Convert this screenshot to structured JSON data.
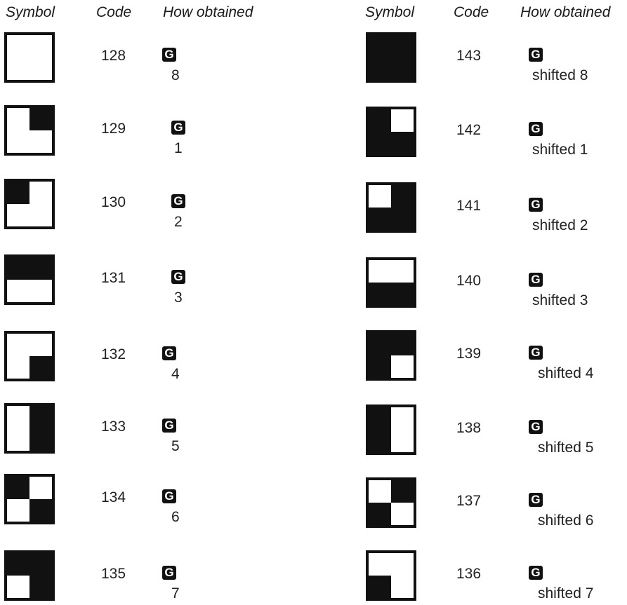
{
  "headers": {
    "left": {
      "symbol": "Symbol",
      "code": "Code",
      "how": "How obtained"
    },
    "right": {
      "symbol": "Symbol",
      "code": "Code",
      "how": "How obtained"
    }
  },
  "key_label": "G",
  "left_rows": [
    {
      "code": "128",
      "how": "8",
      "quadrants": [
        false,
        false,
        false,
        false
      ]
    },
    {
      "code": "129",
      "how": "1",
      "quadrants": [
        false,
        true,
        false,
        false
      ]
    },
    {
      "code": "130",
      "how": "2",
      "quadrants": [
        true,
        false,
        false,
        false
      ]
    },
    {
      "code": "131",
      "how": "3",
      "quadrants": [
        true,
        true,
        false,
        false
      ]
    },
    {
      "code": "132",
      "how": "4",
      "quadrants": [
        false,
        false,
        false,
        true
      ]
    },
    {
      "code": "133",
      "how": "5",
      "quadrants": [
        false,
        true,
        false,
        true
      ]
    },
    {
      "code": "134",
      "how": "6",
      "quadrants": [
        true,
        false,
        false,
        true
      ]
    },
    {
      "code": "135",
      "how": "7",
      "quadrants": [
        true,
        true,
        false,
        true
      ]
    }
  ],
  "right_rows": [
    {
      "code": "143",
      "how": "shifted 8",
      "quadrants": [
        true,
        true,
        true,
        true
      ]
    },
    {
      "code": "142",
      "how": "shifted 1",
      "quadrants": [
        true,
        false,
        true,
        true
      ]
    },
    {
      "code": "141",
      "how": "shifted 2",
      "quadrants": [
        false,
        true,
        true,
        true
      ]
    },
    {
      "code": "140",
      "how": "shifted 3",
      "quadrants": [
        false,
        false,
        true,
        true
      ]
    },
    {
      "code": "139",
      "how": "shifted 4",
      "quadrants": [
        true,
        true,
        true,
        false
      ]
    },
    {
      "code": "138",
      "how": "shifted 5",
      "quadrants": [
        true,
        false,
        true,
        false
      ]
    },
    {
      "code": "137",
      "how": "shifted 6",
      "quadrants": [
        false,
        true,
        true,
        false
      ]
    },
    {
      "code": "136",
      "how": "shifted 7",
      "quadrants": [
        false,
        false,
        true,
        false
      ]
    }
  ]
}
